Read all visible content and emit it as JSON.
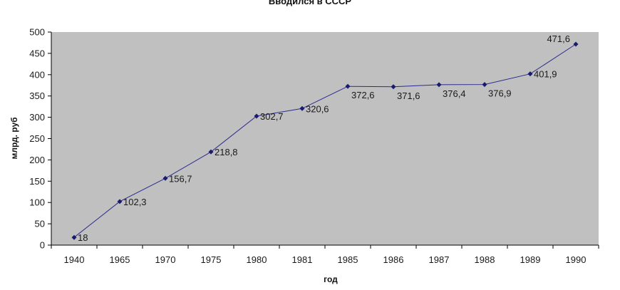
{
  "chart_data": {
    "type": "line",
    "title": "Вводился в СССР",
    "xlabel": "год",
    "ylabel": "млрд. руб",
    "categories": [
      "1940",
      "1965",
      "1970",
      "1975",
      "1980",
      "1981",
      "1985",
      "1986",
      "1987",
      "1988",
      "1989",
      "1990"
    ],
    "series": [
      {
        "values": [
          18,
          102.3,
          156.7,
          218.8,
          302.7,
          320.6,
          372.6,
          371.6,
          376.4,
          376.9,
          401.9,
          471.6
        ],
        "data_labels": [
          "18",
          "102,3",
          "156,7",
          "218,8",
          "302,7",
          "320,6",
          "372,6",
          "371,6",
          "376,4",
          "376,9",
          "401,9",
          "471,6"
        ]
      }
    ],
    "ylim": [
      0,
      500
    ],
    "yticks": [
      0,
      50,
      100,
      150,
      200,
      250,
      300,
      350,
      400,
      450,
      500
    ],
    "grid": false,
    "legend": "none",
    "colors": {
      "plot_background": "#c0c0c0",
      "line": "#2b2b8f",
      "marker": "#1a1a6e",
      "axis": "#000000"
    }
  }
}
